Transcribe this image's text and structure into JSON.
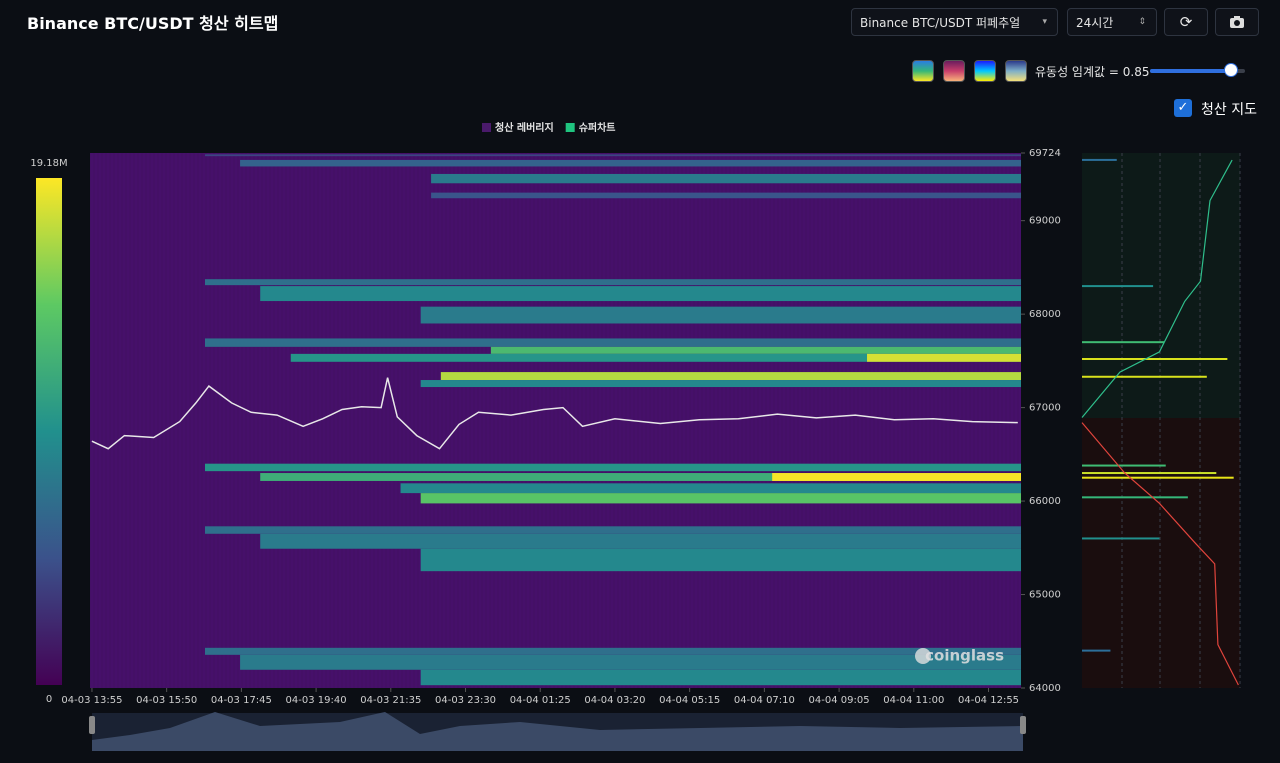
{
  "header": {
    "title": "Binance BTC/USDT 청산 히트맵",
    "pair_select": "Binance BTC/USDT 퍼페추얼",
    "range_select": "24시간"
  },
  "controls": {
    "palettes": [
      [
        "#2a7de1",
        "#35b779",
        "#fde725"
      ],
      [
        "#6b1d5e",
        "#c83f6b",
        "#f8b27a"
      ],
      [
        "#1a1aff",
        "#00c8ff",
        "#ffee00"
      ],
      [
        "#2b3a8c",
        "#7fb0c8",
        "#f5e07a"
      ]
    ],
    "threshold": {
      "label": "유동성 임계값 = 0.85",
      "value": 0.85
    },
    "map_toggle": {
      "label": "청산 지도",
      "checked": true
    }
  },
  "chart_data": {
    "type": "heatmap",
    "legend": [
      {
        "name": "청산 레버리지",
        "color": "#4a1a6b"
      },
      {
        "name": "슈퍼차트",
        "color": "#1fc47f"
      }
    ],
    "watermark": "coinglass",
    "background": "#46106a",
    "colorscale": [
      "#440154",
      "#3b528b",
      "#21908d",
      "#5dc963",
      "#fde725"
    ],
    "colorbar": {
      "ticks": [
        0,
        {
          "value": 19180000,
          "label": "19.18M"
        }
      ]
    },
    "xlim": [
      "04-03 13:52",
      "04-04 13:45"
    ],
    "xticks": [
      "04-03 13:55",
      "04-03 15:50",
      "04-03 17:45",
      "04-03 19:40",
      "04-03 21:35",
      "04-03 23:30",
      "04-04 01:25",
      "04-04 03:20",
      "04-04 05:15",
      "04-04 07:10",
      "04-04 09:05",
      "04-04 11:00",
      "04-04 12:55"
    ],
    "ylim": [
      64000,
      69724
    ],
    "yticks": [
      64000,
      65000,
      66000,
      67000,
      68000,
      69000,
      69724
    ],
    "bands": [
      {
        "low": 69690,
        "high": 69710,
        "start": "04-03 16:49",
        "value": 4000000
      },
      {
        "low": 69580,
        "high": 69650,
        "start": "04-03 17:43",
        "value": 6000000
      },
      {
        "low": 69400,
        "high": 69500,
        "start": "04-03 22:37",
        "value": 8000000
      },
      {
        "low": 69240,
        "high": 69300,
        "start": "04-03 22:37",
        "value": 5000000
      },
      {
        "low": 68310,
        "high": 68374,
        "start": "04-03 16:49",
        "value": 7000000
      },
      {
        "low": 68140,
        "high": 68300,
        "start": "04-03 18:14",
        "value": 9000000
      },
      {
        "low": 67900,
        "high": 68080,
        "start": "04-03 22:21",
        "value": 8000000
      },
      {
        "low": 67650,
        "high": 67740,
        "start": "04-03 16:49",
        "value": 7000000
      },
      {
        "low": 67575,
        "high": 67650,
        "start": "04-04 00:09",
        "value": 13000000
      },
      {
        "low": 67490,
        "high": 67575,
        "start": "04-03 19:01",
        "value": 10000000
      },
      {
        "low": 67490,
        "high": 67575,
        "start": "04-04 09:48",
        "value": 18000000
      },
      {
        "low": 67295,
        "high": 67380,
        "start": "04-03 22:52",
        "value": 17000000
      },
      {
        "low": 67220,
        "high": 67295,
        "start": "04-03 22:21",
        "value": 9000000
      },
      {
        "low": 66320,
        "high": 66400,
        "start": "04-03 16:49",
        "value": 10000000
      },
      {
        "low": 66215,
        "high": 66300,
        "start": "04-03 18:14",
        "value": 12000000
      },
      {
        "low": 66215,
        "high": 66300,
        "start": "04-04 07:22",
        "value": 19000000
      },
      {
        "low": 66085,
        "high": 66190,
        "start": "04-03 21:50",
        "value": 9000000
      },
      {
        "low": 65975,
        "high": 66085,
        "start": "04-03 22:21",
        "value": 14000000
      },
      {
        "low": 65650,
        "high": 65730,
        "start": "04-03 16:49",
        "value": 7000000
      },
      {
        "low": 65490,
        "high": 65650,
        "start": "04-03 18:14",
        "value": 8000000
      },
      {
        "low": 65250,
        "high": 65490,
        "start": "04-03 22:21",
        "value": 9000000
      },
      {
        "low": 64355,
        "high": 64430,
        "start": "04-03 16:49",
        "value": 7000000
      },
      {
        "low": 64195,
        "high": 64355,
        "start": "04-03 17:43",
        "value": 8000000
      },
      {
        "low": 64030,
        "high": 64195,
        "start": "04-03 22:21",
        "value": 9000000
      }
    ],
    "price": {
      "color": "#e8e8e8",
      "x": [
        "04-03 13:55",
        "04-03 14:20",
        "04-03 14:45",
        "04-03 15:30",
        "04-03 16:10",
        "04-03 16:35",
        "04-03 16:55",
        "04-03 17:30",
        "04-03 18:00",
        "04-03 18:40",
        "04-03 19:20",
        "04-03 19:50",
        "04-03 20:20",
        "04-03 20:50",
        "04-03 21:20",
        "04-03 21:30",
        "04-03 21:45",
        "04-03 22:15",
        "04-03 22:50",
        "04-03 23:20",
        "04-03 23:50",
        "04-04 00:40",
        "04-04 01:30",
        "04-04 02:00",
        "04-04 02:30",
        "04-04 03:20",
        "04-04 04:30",
        "04-04 05:30",
        "04-04 06:30",
        "04-04 07:30",
        "04-04 08:30",
        "04-04 09:30",
        "04-04 10:30",
        "04-04 11:30",
        "04-04 12:30",
        "04-04 13:40"
      ],
      "values": [
        66640,
        66560,
        66700,
        66680,
        66850,
        67050,
        67230,
        67050,
        66950,
        66920,
        66800,
        66880,
        66980,
        67010,
        67000,
        67320,
        66900,
        66700,
        66560,
        66820,
        66950,
        66920,
        66980,
        67000,
        66800,
        66880,
        66830,
        66870,
        66880,
        66930,
        66890,
        66920,
        66870,
        66880,
        66850,
        66840
      ]
    },
    "liquidation_map": {
      "short": {
        "color": "#2fbf8c",
        "price": [
          66894,
          67380,
          67596,
          68136,
          68352,
          69216,
          69648
        ],
        "values": [
          0,
          0.24,
          0.49,
          0.65,
          0.75,
          0.81,
          0.95
        ]
      },
      "long": {
        "color": "#e0443c",
        "price": [
          66840,
          66300,
          65976,
          65544,
          65328,
          64464,
          64032
        ],
        "values": [
          0,
          0.27,
          0.49,
          0.72,
          0.84,
          0.86,
          0.99
        ]
      },
      "bars": [
        {
          "price": 69650,
          "value": 0.22,
          "color": "#2c6f9a"
        },
        {
          "price": 68300,
          "value": 0.45,
          "color": "#21908d"
        },
        {
          "price": 67700,
          "value": 0.52,
          "color": "#3fbc73"
        },
        {
          "price": 67520,
          "value": 0.92,
          "color": "#d8e21c"
        },
        {
          "price": 67330,
          "value": 0.79,
          "color": "#d8e21c"
        },
        {
          "price": 66380,
          "value": 0.53,
          "color": "#3fbc73"
        },
        {
          "price": 66300,
          "value": 0.85,
          "color": "#c9df2a"
        },
        {
          "price": 66250,
          "value": 0.96,
          "color": "#e8e417"
        },
        {
          "price": 66040,
          "value": 0.67,
          "color": "#35b779"
        },
        {
          "price": 65600,
          "value": 0.49,
          "color": "#21908d"
        },
        {
          "price": 64400,
          "value": 0.18,
          "color": "#2c6f9a"
        }
      ]
    }
  }
}
